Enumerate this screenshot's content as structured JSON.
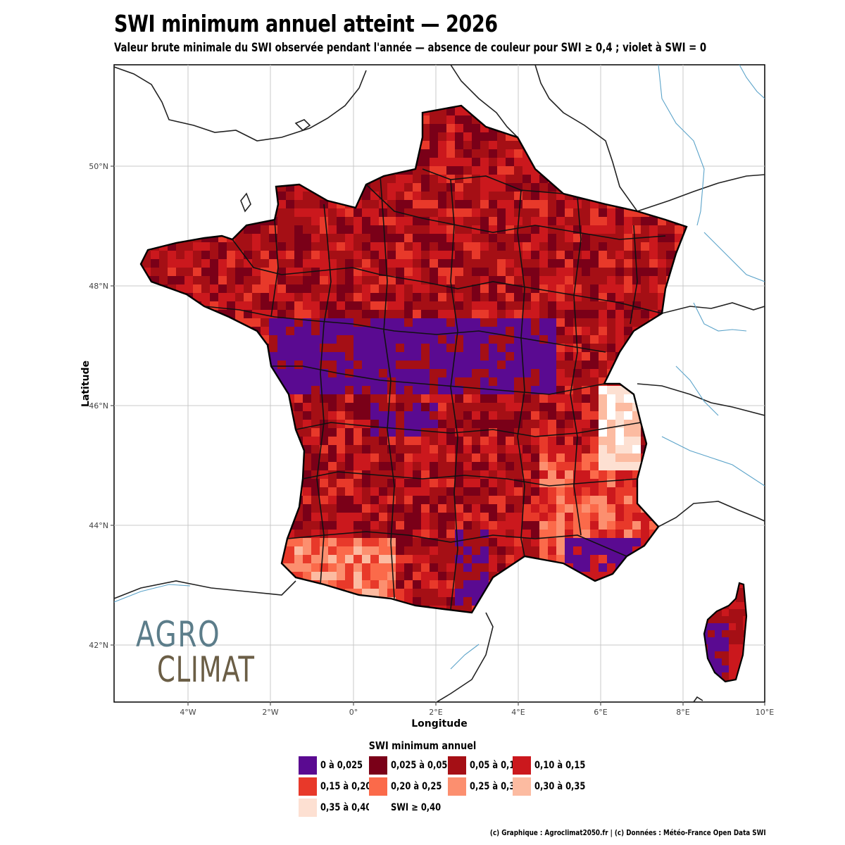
{
  "title": "SWI minimum annuel atteint — 2026",
  "subtitle": "Valeur brute minimale du SWI observée pendant l'année — absence de couleur pour SWI ≥ 0,4 ; violet à SWI = 0",
  "axes": {
    "xlabel": "Longitude",
    "ylabel": "Latitude",
    "x_ticks": [
      "4°W",
      "2°W",
      "0°",
      "2°E",
      "4°E",
      "6°E",
      "8°E",
      "10°E"
    ],
    "y_ticks": [
      "42°N",
      "44°N",
      "46°N",
      "48°N",
      "50°N"
    ]
  },
  "legend": {
    "title": "SWI minimum annuel",
    "items": [
      {
        "label": "0 à 0,025",
        "color": "#5a0a91"
      },
      {
        "label": "0,025 à 0,05",
        "color": "#7a0018"
      },
      {
        "label": "0,05 à 0,10",
        "color": "#a50f15"
      },
      {
        "label": "0,10 à 0,15",
        "color": "#cb181d"
      },
      {
        "label": "0,15 à 0,20",
        "color": "#e8392a"
      },
      {
        "label": "0,20 à 0,25",
        "color": "#fb6a4a"
      },
      {
        "label": "0,25 à 0,30",
        "color": "#fc8f6f"
      },
      {
        "label": "0,30 à 0,35",
        "color": "#fcbba1"
      },
      {
        "label": "0,35 à 0,40",
        "color": "#fde0d2"
      },
      {
        "label": "SWI ≥ 0,40",
        "color": "#ffffff"
      }
    ]
  },
  "logo": {
    "line1": "AGRO",
    "line2": "CLIMAT"
  },
  "credit": "(c) Graphique : Agroclimat2050.fr | (c) Données : Météo-France Open Data SWI"
}
